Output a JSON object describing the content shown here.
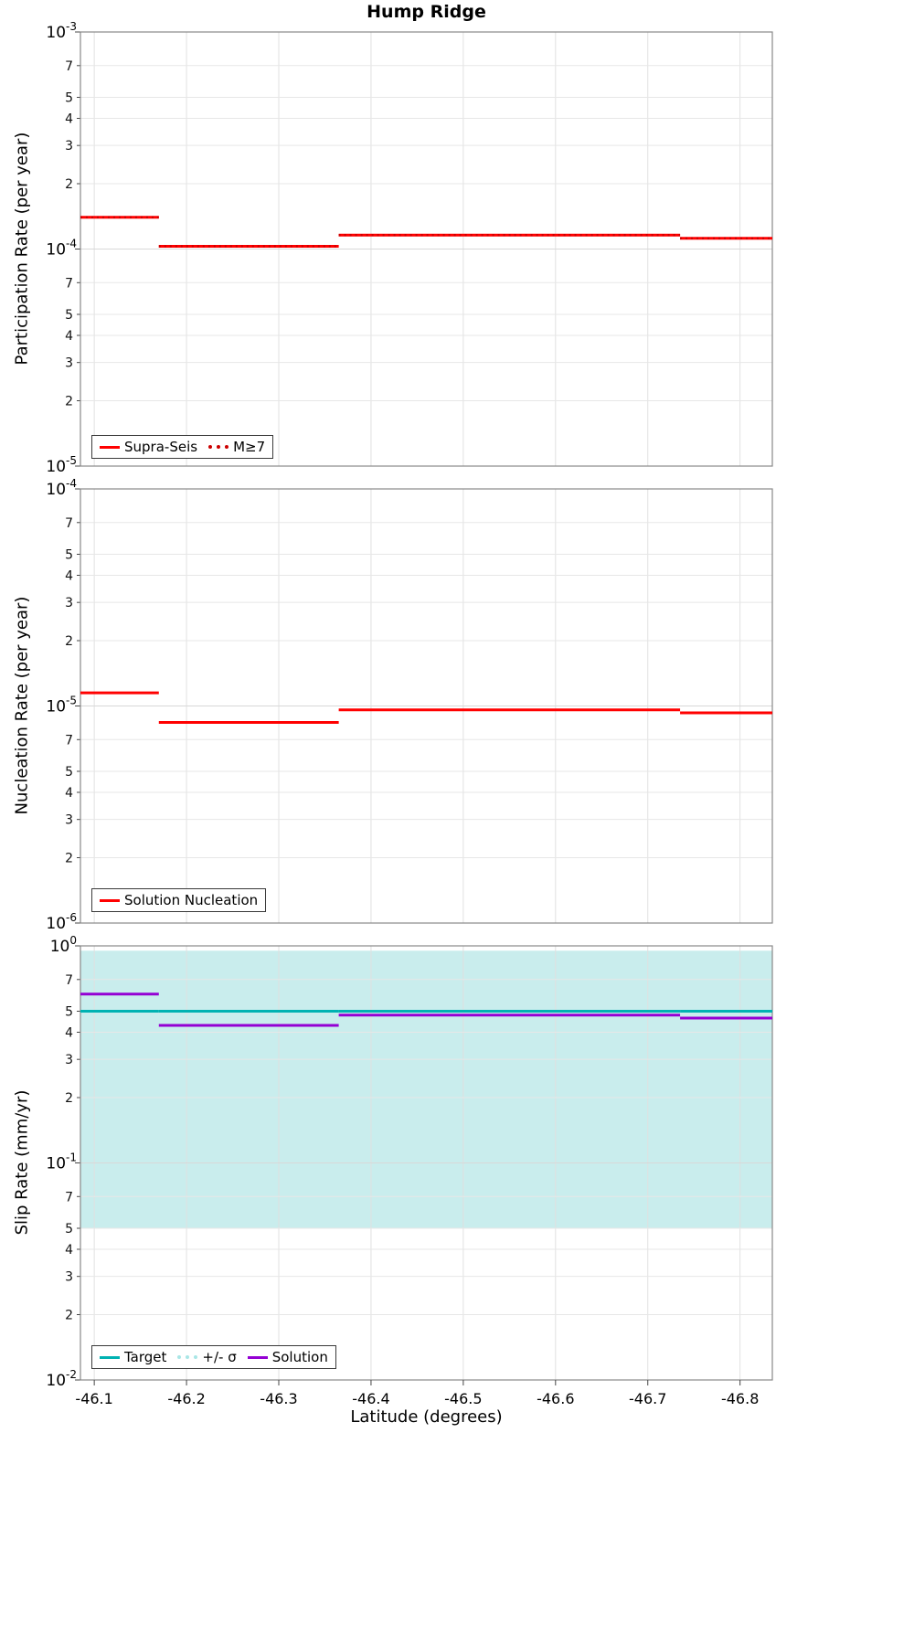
{
  "chart_data": {
    "type": "line",
    "title": "Hump Ridge",
    "xlabel": "Latitude (degrees)",
    "grid": true,
    "legend_position": "lower left",
    "x_axis_reversed": true,
    "x_range": [
      -46.085,
      -46.835
    ],
    "x_ticks": [
      -46.1,
      -46.2,
      -46.3,
      -46.4,
      -46.5,
      -46.6,
      -46.7,
      -46.8
    ],
    "x_tick_labels": [
      "-46.1",
      "-46.2",
      "-46.3",
      "-46.4",
      "-46.5",
      "-46.6",
      "-46.7",
      "-46.8"
    ],
    "segment_bounds": [
      [
        -46.085,
        -46.17
      ],
      [
        -46.17,
        -46.365
      ],
      [
        -46.365,
        -46.735
      ],
      [
        -46.735,
        -46.835
      ]
    ],
    "minor_tick_digits": [
      7,
      5,
      4,
      3,
      2
    ],
    "panels": [
      {
        "id": "participation",
        "ylabel": "Participation Rate (per year)",
        "y_exp_top": -3,
        "y_exp_bottom": -5,
        "legend": [
          {
            "label": "Supra-Seis",
            "color": "#ff0000",
            "style": "solid"
          },
          {
            "label": "M≥7",
            "color": "#cc0000",
            "style": "dotted"
          }
        ],
        "series": [
          {
            "name": "Supra-Seis",
            "color": "#ff0000",
            "style": "solid",
            "width": 3,
            "values": [
              0.00014,
              0.000103,
              0.000116,
              0.000112
            ]
          },
          {
            "name": "M≥7",
            "color": "#cc0000",
            "style": "dotted",
            "width": 2.5,
            "values": [
              0.00014,
              0.000103,
              0.000116,
              0.000112
            ]
          }
        ]
      },
      {
        "id": "nucleation",
        "ylabel": "Nucleation Rate (per year)",
        "y_exp_top": -4,
        "y_exp_bottom": -6,
        "legend": [
          {
            "label": "Solution Nucleation",
            "color": "#ff0000",
            "style": "solid"
          }
        ],
        "series": [
          {
            "name": "Solution Nucleation",
            "color": "#ff0000",
            "style": "solid",
            "width": 3,
            "values": [
              1.15e-05,
              8.4e-06,
              9.6e-06,
              9.3e-06
            ]
          }
        ]
      },
      {
        "id": "slip-rate",
        "ylabel": "Slip Rate (mm/yr)",
        "y_exp_top": 0,
        "y_exp_bottom": -2,
        "band": {
          "label": "+/- σ",
          "low": 0.05,
          "high": 0.95,
          "color": "#c9eded"
        },
        "legend": [
          {
            "label": "Target",
            "color": "#00b2b2",
            "style": "solid"
          },
          {
            "label": "+/- σ",
            "color": "#a9e6e6",
            "style": "dotted"
          },
          {
            "label": "Solution",
            "color": "#9400d3",
            "style": "solid"
          }
        ],
        "series": [
          {
            "name": "Target",
            "color": "#00b2b2",
            "style": "solid",
            "width": 3,
            "values": [
              0.5,
              0.5,
              0.5,
              0.5
            ]
          },
          {
            "name": "Solution",
            "color": "#9400d3",
            "style": "solid",
            "width": 3,
            "values": [
              0.6,
              0.43,
              0.48,
              0.465
            ]
          }
        ]
      }
    ]
  }
}
